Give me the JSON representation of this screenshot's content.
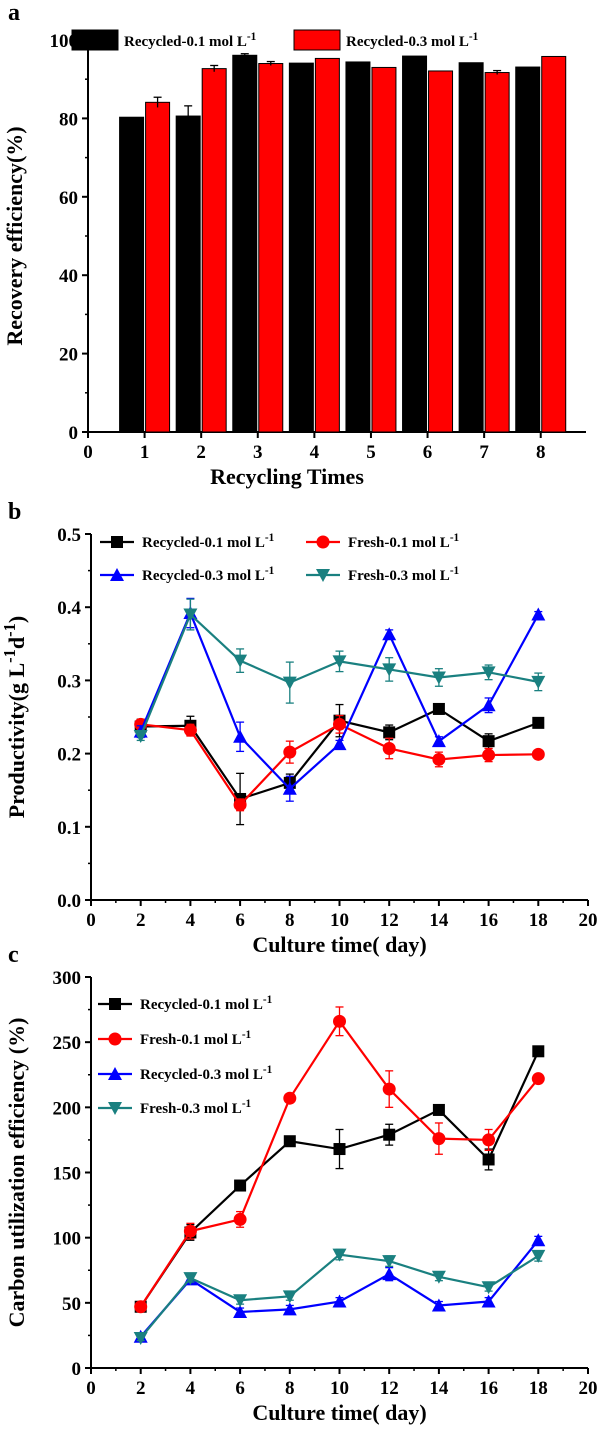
{
  "chart_data": [
    {
      "panel_label": "a",
      "type": "bar",
      "xlabel": "Recycling Times",
      "ylabel": "Recovery efficiency(%)",
      "ylim": [
        0,
        100
      ],
      "yticks": [
        "0",
        "20",
        "40",
        "60",
        "80",
        "100"
      ],
      "xlim": [
        0,
        8.8
      ],
      "xticks": [
        "0",
        "1",
        "2",
        "3",
        "4",
        "5",
        "6",
        "7",
        "8"
      ],
      "categories": [
        1,
        2,
        3,
        4,
        5,
        6,
        7,
        8
      ],
      "legend_position": "top",
      "series": [
        {
          "name": "Recycled-0.1 mol L-1",
          "color": "#000000",
          "values": [
            80.3,
            80.6,
            96.1,
            94.1,
            94.4,
            95.9,
            94.2,
            93.1
          ],
          "errors": [
            0,
            2.6,
            0.4,
            0,
            0,
            0,
            0,
            0
          ]
        },
        {
          "name": "Recycled-0.3 mol L-1",
          "color": "#ff0000",
          "values": [
            84.1,
            92.7,
            94.0,
            95.3,
            93.0,
            92.1,
            91.7,
            95.8
          ],
          "errors": [
            1.3,
            0.8,
            0.5,
            0,
            0,
            0,
            0.5,
            0
          ]
        }
      ]
    },
    {
      "panel_label": "b",
      "type": "line",
      "xlabel": "Culture time( day)",
      "ylabel": "Productivity(g L-1d-1)",
      "xlim": [
        0,
        20
      ],
      "ylim": [
        0,
        0.5
      ],
      "xticks": [
        "0",
        "2",
        "4",
        "6",
        "8",
        "10",
        "12",
        "14",
        "16",
        "18",
        "20"
      ],
      "yticks": [
        "0.0",
        "0.1",
        "0.2",
        "0.3",
        "0.4",
        "0.5"
      ],
      "x": [
        2,
        4,
        6,
        8,
        10,
        12,
        14,
        16,
        18
      ],
      "legend_position": "top",
      "series": [
        {
          "name": "Recycled-0.1 mol L-1",
          "color": "#000000",
          "marker": "square",
          "values": [
            0.237,
            0.238,
            0.138,
            0.16,
            0.245,
            0.229,
            0.261,
            0.217,
            0.242
          ],
          "errors": [
            0.01,
            0.013,
            0.035,
            0.012,
            0.022,
            0.01,
            0.005,
            0.01,
            0.004
          ]
        },
        {
          "name": "Fresh-0.1 mol L-1",
          "color": "#ff0000",
          "marker": "circle",
          "values": [
            0.24,
            0.232,
            0.13,
            0.202,
            0.24,
            0.207,
            0.192,
            0.198,
            0.199
          ],
          "errors": [
            0.006,
            0.008,
            0.008,
            0.015,
            0.012,
            0.014,
            0.01,
            0.009,
            0.004
          ]
        },
        {
          "name": "Recycled-0.3 mol L-1",
          "color": "#0000ff",
          "marker": "triangle-up",
          "values": [
            0.23,
            0.392,
            0.223,
            0.152,
            0.213,
            0.363,
            0.217,
            0.266,
            0.39
          ],
          "errors": [
            0.008,
            0.02,
            0.02,
            0.017,
            0.005,
            0.006,
            0.006,
            0.01,
            0.004
          ]
        },
        {
          "name": "Fresh-0.3 mol L-1",
          "color": "#1a8080",
          "marker": "triangle-down",
          "values": [
            0.224,
            0.39,
            0.327,
            0.297,
            0.326,
            0.315,
            0.304,
            0.311,
            0.298
          ],
          "errors": [
            0.006,
            0.021,
            0.016,
            0.028,
            0.014,
            0.016,
            0.012,
            0.01,
            0.012
          ]
        }
      ]
    },
    {
      "panel_label": "c",
      "type": "line",
      "xlabel": "Culture time( day)",
      "ylabel": "Carbon utilization efficiency (%)",
      "xlim": [
        0,
        20
      ],
      "ylim": [
        0,
        300
      ],
      "xticks": [
        "0",
        "2",
        "4",
        "6",
        "8",
        "10",
        "12",
        "14",
        "16",
        "18",
        "20"
      ],
      "yticks": [
        "0",
        "50",
        "100",
        "150",
        "200",
        "250",
        "300"
      ],
      "x": [
        2,
        4,
        6,
        8,
        10,
        12,
        14,
        16,
        18
      ],
      "legend_position": "top-left",
      "series": [
        {
          "name": "Recycled-0.1 mol L-1",
          "color": "#000000",
          "marker": "square",
          "values": [
            47,
            104,
            140,
            174,
            168,
            179,
            198,
            160,
            243
          ],
          "errors": [
            2,
            6,
            3,
            2,
            15,
            8,
            3,
            8,
            3
          ]
        },
        {
          "name": "Fresh-0.1 mol L-1",
          "color": "#ff0000",
          "marker": "circle",
          "values": [
            47,
            105,
            114,
            207,
            266,
            214,
            176,
            175,
            222
          ],
          "errors": [
            2,
            6,
            6,
            2,
            11,
            14,
            12,
            8,
            3
          ]
        },
        {
          "name": "Recycled-0.3 mol L-1",
          "color": "#0000ff",
          "marker": "triangle-up",
          "values": [
            24,
            68,
            43,
            45,
            51,
            72,
            48,
            51,
            98
          ],
          "errors": [
            2,
            3,
            3,
            3,
            3,
            5,
            3,
            3,
            3
          ]
        },
        {
          "name": "Fresh-0.3 mol L-1",
          "color": "#1a8080",
          "marker": "triangle-down",
          "values": [
            23,
            69,
            52,
            55,
            87,
            82,
            70,
            62,
            86
          ],
          "errors": [
            2,
            3,
            3,
            3,
            4,
            4,
            3,
            3,
            4
          ]
        }
      ]
    }
  ]
}
